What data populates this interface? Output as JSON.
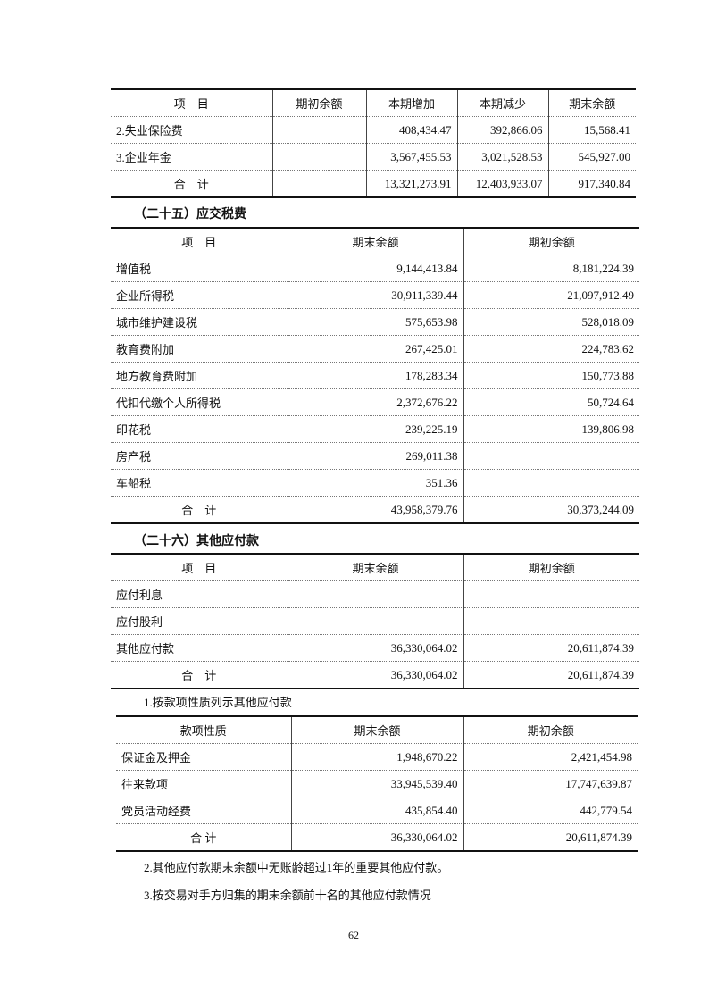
{
  "table1": {
    "headers": [
      "项　目",
      "期初余额",
      "本期增加",
      "本期减少",
      "期末余额"
    ],
    "rows": [
      [
        "2.失业保险费",
        "",
        "408,434.47",
        "392,866.06",
        "15,568.41"
      ],
      [
        "3.企业年金",
        "",
        "3,567,455.53",
        "3,021,528.53",
        "545,927.00"
      ],
      [
        "合　计",
        "",
        "13,321,273.91",
        "12,403,933.07",
        "917,340.84"
      ]
    ]
  },
  "section25": {
    "title": "（二十五）应交税费"
  },
  "table2": {
    "headers": [
      "项　目",
      "期末余额",
      "期初余额"
    ],
    "rows": [
      [
        "增值税",
        "9,144,413.84",
        "8,181,224.39"
      ],
      [
        "企业所得税",
        "30,911,339.44",
        "21,097,912.49"
      ],
      [
        "城市维护建设税",
        "575,653.98",
        "528,018.09"
      ],
      [
        "教育费附加",
        "267,425.01",
        "224,783.62"
      ],
      [
        "地方教育费附加",
        "178,283.34",
        "150,773.88"
      ],
      [
        "代扣代缴个人所得税",
        "2,372,676.22",
        "50,724.64"
      ],
      [
        "印花税",
        "239,225.19",
        "139,806.98"
      ],
      [
        "房产税",
        "269,011.38",
        ""
      ],
      [
        "车船税",
        "351.36",
        ""
      ],
      [
        "合　计",
        "43,958,379.76",
        "30,373,244.09"
      ]
    ]
  },
  "section26": {
    "title": "（二十六）其他应付款"
  },
  "table3": {
    "headers": [
      "项　目",
      "期末余额",
      "期初余额"
    ],
    "rows": [
      [
        "应付利息",
        "",
        ""
      ],
      [
        "应付股利",
        "",
        ""
      ],
      [
        "其他应付款",
        "36,330,064.02",
        "20,611,874.39"
      ],
      [
        "合　计",
        "36,330,064.02",
        "20,611,874.39"
      ]
    ]
  },
  "note1": "1.按款项性质列示其他应付款",
  "table4": {
    "headers": [
      "款项性质",
      "期末余额",
      "期初余额"
    ],
    "rows": [
      [
        "保证金及押金",
        "1,948,670.22",
        "2,421,454.98"
      ],
      [
        "往来款项",
        "33,945,539.40",
        "17,747,639.87"
      ],
      [
        "党员活动经费",
        "435,854.40",
        "442,779.54"
      ],
      [
        "合 计",
        "36,330,064.02",
        "20,611,874.39"
      ]
    ]
  },
  "note2": "2.其他应付款期末余额中无账龄超过1年的重要其他应付款。",
  "note3": "3.按交易对手方归集的期末余额前十名的其他应付款情况",
  "page_number": "62"
}
